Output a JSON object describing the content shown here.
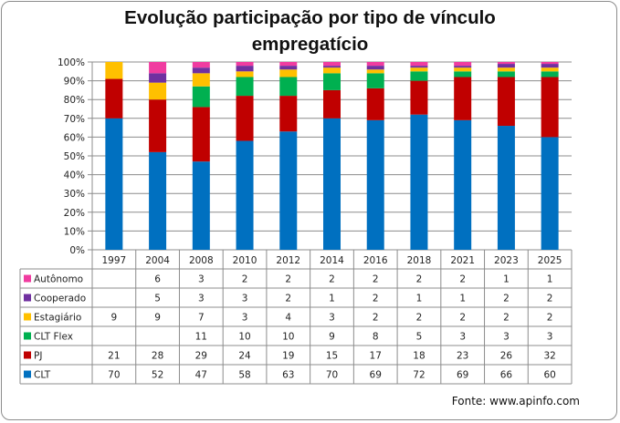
{
  "chart_data": {
    "type": "bar",
    "stacked": "percent",
    "title": "Evolução participação por tipo de vínculo empregatício",
    "title_lines": [
      "Evolução participação por tipo de vínculo",
      "empregatício"
    ],
    "xlabel": "",
    "ylabel": "",
    "ylim": [
      0,
      100
    ],
    "y_ticks": [
      "0%",
      "10%",
      "20%",
      "30%",
      "40%",
      "50%",
      "60%",
      "70%",
      "80%",
      "90%",
      "100%"
    ],
    "grid": true,
    "legend": "data-table-left",
    "categories": [
      "1997",
      "2004",
      "2008",
      "2010",
      "2012",
      "2014",
      "2016",
      "2018",
      "2021",
      "2023",
      "2025"
    ],
    "series": [
      {
        "name": "CLT",
        "color": "#0070C0",
        "values": [
          70,
          52,
          47,
          58,
          63,
          70,
          69,
          72,
          69,
          66,
          60
        ]
      },
      {
        "name": "PJ",
        "color": "#C00000",
        "values": [
          21,
          28,
          29,
          24,
          19,
          15,
          17,
          18,
          23,
          26,
          32
        ]
      },
      {
        "name": "CLT Flex",
        "color": "#00B050",
        "values": [
          null,
          null,
          11,
          10,
          10,
          9,
          8,
          5,
          3,
          3,
          3
        ]
      },
      {
        "name": "Estagiário",
        "color": "#FFC000",
        "values": [
          9,
          9,
          7,
          3,
          4,
          3,
          2,
          2,
          2,
          2,
          2
        ]
      },
      {
        "name": "Cooperado",
        "color": "#7030A0",
        "values": [
          null,
          5,
          3,
          3,
          2,
          1,
          2,
          1,
          1,
          2,
          2
        ]
      },
      {
        "name": "Autônomo",
        "color": "#F03CA0",
        "values": [
          null,
          6,
          3,
          2,
          2,
          2,
          2,
          2,
          2,
          1,
          1
        ]
      }
    ],
    "table_row_order": [
      "Autônomo",
      "Cooperado",
      "Estagiário",
      "CLT Flex",
      "PJ",
      "CLT"
    ]
  },
  "source": "Fonte: www.apinfo.com"
}
